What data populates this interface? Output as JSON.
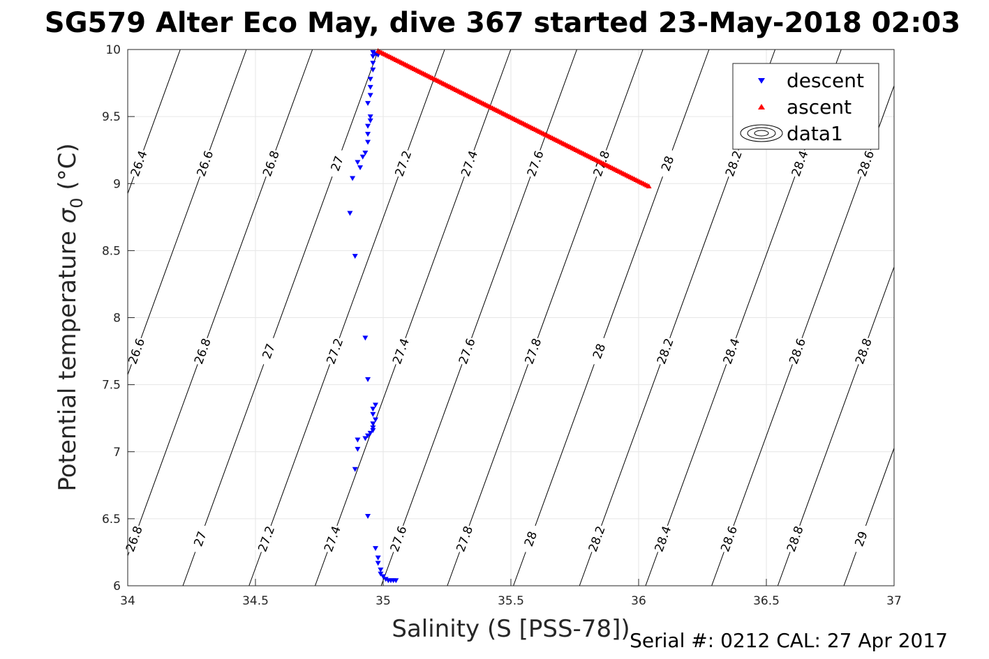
{
  "figure": {
    "title": "SG579 Alter Eco May, dive 367 started 23-May-2018 02:03",
    "footer": "Serial #: 0212  CAL: 27 Apr 2017"
  },
  "chart_data": {
    "type": "scatter",
    "xlabel": "Salinity (S [PSS-78])",
    "ylabel_main": "Potential temperature ",
    "ylabel_sym": "σ",
    "ylabel_sub": "0",
    "ylabel_unit": " (°C)",
    "xlim": [
      34,
      37
    ],
    "ylim": [
      6,
      10
    ],
    "xticks": [
      "34",
      "34.5",
      "35",
      "35.5",
      "36",
      "36.5",
      "37"
    ],
    "yticks": [
      "6",
      "6.5",
      "7",
      "7.5",
      "8",
      "8.5",
      "9",
      "9.5",
      "10"
    ],
    "grid": true,
    "legend_position": "top-right",
    "colors": {
      "descent": "#0000ff",
      "ascent": "#ff0000",
      "contours": "#000000"
    },
    "series": [
      {
        "name": "descent",
        "marker": "triangle-down",
        "color": "#0000ff",
        "points": [
          [
            34.96,
            9.98
          ],
          [
            34.97,
            9.97
          ],
          [
            34.98,
            9.96
          ],
          [
            34.96,
            9.95
          ],
          [
            34.96,
            9.9
          ],
          [
            34.96,
            9.85
          ],
          [
            34.95,
            9.78
          ],
          [
            34.95,
            9.72
          ],
          [
            34.95,
            9.66
          ],
          [
            34.94,
            9.6
          ],
          [
            34.95,
            9.5
          ],
          [
            34.95,
            9.47
          ],
          [
            34.94,
            9.43
          ],
          [
            34.94,
            9.37
          ],
          [
            34.94,
            9.31
          ],
          [
            34.93,
            9.23
          ],
          [
            34.92,
            9.2
          ],
          [
            34.9,
            9.16
          ],
          [
            34.91,
            9.12
          ],
          [
            34.88,
            9.04
          ],
          [
            34.87,
            8.78
          ],
          [
            34.89,
            8.46
          ],
          [
            34.93,
            7.85
          ],
          [
            34.94,
            7.54
          ],
          [
            34.97,
            7.35
          ],
          [
            34.96,
            7.32
          ],
          [
            34.96,
            7.28
          ],
          [
            34.97,
            7.24
          ],
          [
            34.96,
            7.21
          ],
          [
            34.96,
            7.18
          ],
          [
            34.96,
            7.16
          ],
          [
            34.95,
            7.14
          ],
          [
            34.94,
            7.12
          ],
          [
            34.93,
            7.1
          ],
          [
            34.9,
            7.09
          ],
          [
            34.9,
            7.02
          ],
          [
            34.89,
            6.87
          ],
          [
            34.94,
            6.52
          ],
          [
            34.97,
            6.28
          ],
          [
            34.98,
            6.21
          ],
          [
            34.98,
            6.17
          ],
          [
            34.99,
            6.12
          ],
          [
            34.99,
            6.09
          ],
          [
            35.0,
            6.07
          ],
          [
            35.01,
            6.05
          ],
          [
            35.02,
            6.04
          ],
          [
            35.03,
            6.04
          ],
          [
            35.04,
            6.04
          ],
          [
            35.05,
            6.04
          ]
        ]
      },
      {
        "name": "ascent",
        "marker": "triangle-up",
        "color": "#ff0000",
        "start": [
          34.98,
          9.99
        ],
        "end": [
          36.04,
          8.98
        ],
        "count": 150
      },
      {
        "name": "data1",
        "marker": "contour",
        "color": "#000000",
        "sigma_levels": [
          26.4,
          26.6,
          26.8,
          27.0,
          27.2,
          27.4,
          27.6,
          27.8,
          28.0,
          28.2,
          28.4,
          28.6,
          28.8,
          29.0
        ],
        "label_rows": [
          {
            "temperature": 9.15,
            "labels": [
              "26.4",
              "26.6",
              "26.8",
              "27",
              "27.2",
              "27.4",
              "27.6",
              "27.8",
              "28",
              "28.2",
              "28.4",
              "28.6"
            ]
          },
          {
            "temperature": 7.75,
            "labels": [
              "26.6",
              "26.8",
              "27",
              "27.2",
              "27.4",
              "27.6",
              "27.8",
              "28",
              "28.2",
              "28.4",
              "28.6",
              "28.8"
            ]
          },
          {
            "temperature": 6.35,
            "labels": [
              "26.8",
              "27",
              "27.2",
              "27.4",
              "27.6",
              "27.8",
              "28",
              "28.2",
              "28.4",
              "28.6",
              "28.8",
              "29"
            ]
          }
        ]
      }
    ]
  }
}
